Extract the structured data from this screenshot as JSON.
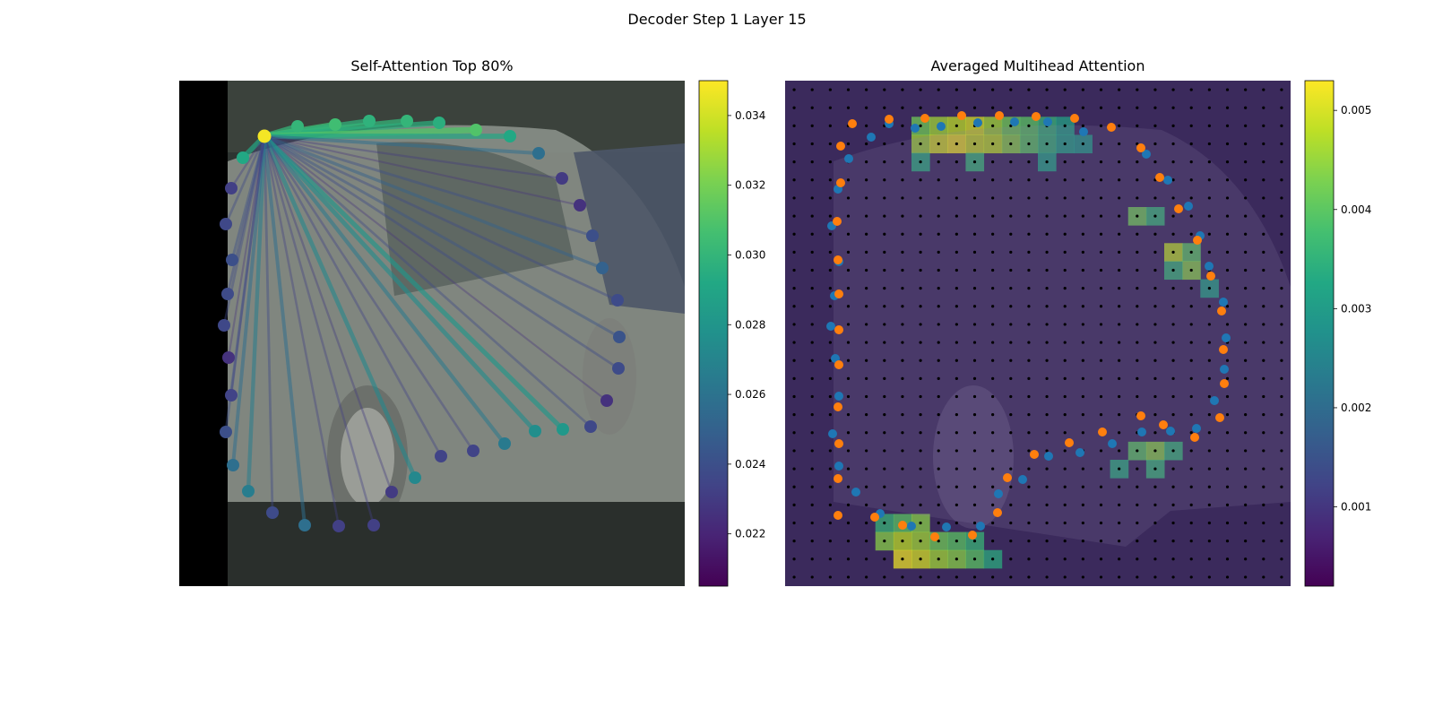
{
  "figure": {
    "suptitle": "Decoder Step 1 Layer 15"
  },
  "chart_data": [
    {
      "type": "scatter",
      "title": "Self-Attention Top 80%",
      "description_type": "image with attention lines between query points",
      "colorbar": {
        "colormap": "viridis",
        "range": [
          0.0205,
          0.035
        ],
        "ticks": [
          "0.022",
          "0.024",
          "0.026",
          "0.028",
          "0.030",
          "0.032",
          "0.034"
        ],
        "tick_values": [
          0.022,
          0.024,
          0.026,
          0.028,
          0.03,
          0.032,
          0.034
        ]
      },
      "query_point": {
        "x": 95,
        "y": 62,
        "value": 0.0348
      },
      "points": [
        {
          "x": 71,
          "y": 86,
          "value": 0.0292
        },
        {
          "x": 132,
          "y": 51,
          "value": 0.03
        },
        {
          "x": 174,
          "y": 49,
          "value": 0.0305
        },
        {
          "x": 212,
          "y": 45,
          "value": 0.0298
        },
        {
          "x": 254,
          "y": 45,
          "value": 0.03
        },
        {
          "x": 290,
          "y": 47,
          "value": 0.0296
        },
        {
          "x": 331,
          "y": 55,
          "value": 0.031
        },
        {
          "x": 369,
          "y": 62,
          "value": 0.0292
        },
        {
          "x": 401,
          "y": 81,
          "value": 0.0258
        },
        {
          "x": 427,
          "y": 109,
          "value": 0.023
        },
        {
          "x": 447,
          "y": 139,
          "value": 0.0226
        },
        {
          "x": 461,
          "y": 173,
          "value": 0.024
        },
        {
          "x": 472,
          "y": 209,
          "value": 0.025
        },
        {
          "x": 489,
          "y": 245,
          "value": 0.0238
        },
        {
          "x": 491,
          "y": 286,
          "value": 0.0242
        },
        {
          "x": 490,
          "y": 321,
          "value": 0.0238
        },
        {
          "x": 477,
          "y": 357,
          "value": 0.0226
        },
        {
          "x": 459,
          "y": 386,
          "value": 0.0236
        },
        {
          "x": 428,
          "y": 389,
          "value": 0.0282
        },
        {
          "x": 397,
          "y": 391,
          "value": 0.0276
        },
        {
          "x": 363,
          "y": 405,
          "value": 0.0264
        },
        {
          "x": 328,
          "y": 413,
          "value": 0.0234
        },
        {
          "x": 292,
          "y": 419,
          "value": 0.0234
        },
        {
          "x": 263,
          "y": 443,
          "value": 0.0272
        },
        {
          "x": 237,
          "y": 459,
          "value": 0.023
        },
        {
          "x": 217,
          "y": 496,
          "value": 0.0232
        },
        {
          "x": 178,
          "y": 497,
          "value": 0.0232
        },
        {
          "x": 140,
          "y": 496,
          "value": 0.0258
        },
        {
          "x": 104,
          "y": 482,
          "value": 0.0238
        },
        {
          "x": 77,
          "y": 458,
          "value": 0.0266
        },
        {
          "x": 60,
          "y": 429,
          "value": 0.0258
        },
        {
          "x": 52,
          "y": 392,
          "value": 0.024
        },
        {
          "x": 58,
          "y": 351,
          "value": 0.0234
        },
        {
          "x": 55,
          "y": 309,
          "value": 0.0226
        },
        {
          "x": 50,
          "y": 273,
          "value": 0.0236
        },
        {
          "x": 54,
          "y": 238,
          "value": 0.0238
        },
        {
          "x": 59,
          "y": 200,
          "value": 0.024
        },
        {
          "x": 52,
          "y": 160,
          "value": 0.0236
        },
        {
          "x": 58,
          "y": 120,
          "value": 0.0232
        }
      ]
    },
    {
      "type": "heatmap",
      "title": "Averaged Multihead Attention",
      "colorbar": {
        "colormap": "viridis",
        "range": [
          0.0002,
          0.0053
        ],
        "ticks": [
          "0.001",
          "0.002",
          "0.003",
          "0.004",
          "0.005"
        ],
        "tick_values": [
          0.001,
          0.002,
          0.003,
          0.004,
          0.005
        ]
      },
      "grid": {
        "rows": 28,
        "cols": 28
      },
      "hot_cells": [
        {
          "r": 2,
          "c": 7,
          "v": 0.0042
        },
        {
          "r": 2,
          "c": 8,
          "v": 0.0046
        },
        {
          "r": 2,
          "c": 9,
          "v": 0.0048
        },
        {
          "r": 2,
          "c": 10,
          "v": 0.005
        },
        {
          "r": 2,
          "c": 11,
          "v": 0.0046
        },
        {
          "r": 2,
          "c": 12,
          "v": 0.0042
        },
        {
          "r": 2,
          "c": 13,
          "v": 0.004
        },
        {
          "r": 2,
          "c": 14,
          "v": 0.0036
        },
        {
          "r": 2,
          "c": 15,
          "v": 0.0032
        },
        {
          "r": 3,
          "c": 7,
          "v": 0.0046
        },
        {
          "r": 3,
          "c": 8,
          "v": 0.005
        },
        {
          "r": 3,
          "c": 9,
          "v": 0.0052
        },
        {
          "r": 3,
          "c": 10,
          "v": 0.0049
        },
        {
          "r": 3,
          "c": 11,
          "v": 0.0048
        },
        {
          "r": 3,
          "c": 12,
          "v": 0.0044
        },
        {
          "r": 3,
          "c": 13,
          "v": 0.004
        },
        {
          "r": 3,
          "c": 14,
          "v": 0.0036
        },
        {
          "r": 3,
          "c": 15,
          "v": 0.0032
        },
        {
          "r": 3,
          "c": 16,
          "v": 0.003
        },
        {
          "r": 4,
          "c": 7,
          "v": 0.0034
        },
        {
          "r": 4,
          "c": 10,
          "v": 0.0036
        },
        {
          "r": 4,
          "c": 14,
          "v": 0.0032
        },
        {
          "r": 7,
          "c": 19,
          "v": 0.0042
        },
        {
          "r": 7,
          "c": 20,
          "v": 0.0036
        },
        {
          "r": 9,
          "c": 21,
          "v": 0.0048
        },
        {
          "r": 9,
          "c": 22,
          "v": 0.004
        },
        {
          "r": 10,
          "c": 22,
          "v": 0.0044
        },
        {
          "r": 10,
          "c": 21,
          "v": 0.0036
        },
        {
          "r": 11,
          "c": 23,
          "v": 0.0032
        },
        {
          "r": 20,
          "c": 19,
          "v": 0.004
        },
        {
          "r": 20,
          "c": 20,
          "v": 0.0044
        },
        {
          "r": 20,
          "c": 21,
          "v": 0.0036
        },
        {
          "r": 21,
          "c": 18,
          "v": 0.0034
        },
        {
          "r": 21,
          "c": 20,
          "v": 0.0036
        },
        {
          "r": 24,
          "c": 5,
          "v": 0.0036
        },
        {
          "r": 24,
          "c": 6,
          "v": 0.004
        },
        {
          "r": 24,
          "c": 7,
          "v": 0.0044
        },
        {
          "r": 25,
          "c": 5,
          "v": 0.0044
        },
        {
          "r": 25,
          "c": 6,
          "v": 0.0048
        },
        {
          "r": 25,
          "c": 7,
          "v": 0.0046
        },
        {
          "r": 25,
          "c": 8,
          "v": 0.0042
        },
        {
          "r": 25,
          "c": 9,
          "v": 0.004
        },
        {
          "r": 25,
          "c": 10,
          "v": 0.0036
        },
        {
          "r": 26,
          "c": 6,
          "v": 0.0052
        },
        {
          "r": 26,
          "c": 7,
          "v": 0.005
        },
        {
          "r": 26,
          "c": 8,
          "v": 0.0046
        },
        {
          "r": 26,
          "c": 9,
          "v": 0.0044
        },
        {
          "r": 26,
          "c": 10,
          "v": 0.004
        },
        {
          "r": 26,
          "c": 11,
          "v": 0.0034
        }
      ],
      "series": [
        {
          "color": "#1f77b4",
          "points": [
            {
              "x": 96,
              "y": 63
            },
            {
              "x": 116,
              "y": 48
            },
            {
              "x": 145,
              "y": 53
            },
            {
              "x": 174,
              "y": 51
            },
            {
              "x": 215,
              "y": 47
            },
            {
              "x": 256,
              "y": 46
            },
            {
              "x": 293,
              "y": 46
            },
            {
              "x": 333,
              "y": 57
            },
            {
              "x": 403,
              "y": 82
            },
            {
              "x": 427,
              "y": 111
            },
            {
              "x": 450,
              "y": 140
            },
            {
              "x": 463,
              "y": 173
            },
            {
              "x": 473,
              "y": 207
            },
            {
              "x": 489,
              "y": 247
            },
            {
              "x": 492,
              "y": 287
            },
            {
              "x": 490,
              "y": 322
            },
            {
              "x": 479,
              "y": 357
            },
            {
              "x": 459,
              "y": 388
            },
            {
              "x": 430,
              "y": 391
            },
            {
              "x": 398,
              "y": 392
            },
            {
              "x": 365,
              "y": 405
            },
            {
              "x": 329,
              "y": 415
            },
            {
              "x": 294,
              "y": 419
            },
            {
              "x": 265,
              "y": 445
            },
            {
              "x": 238,
              "y": 461
            },
            {
              "x": 218,
              "y": 497
            },
            {
              "x": 180,
              "y": 498
            },
            {
              "x": 141,
              "y": 497
            },
            {
              "x": 106,
              "y": 483
            },
            {
              "x": 79,
              "y": 459
            },
            {
              "x": 60,
              "y": 430
            },
            {
              "x": 53,
              "y": 394
            },
            {
              "x": 60,
              "y": 352
            },
            {
              "x": 56,
              "y": 310
            },
            {
              "x": 51,
              "y": 274
            },
            {
              "x": 55,
              "y": 240
            },
            {
              "x": 60,
              "y": 202
            },
            {
              "x": 52,
              "y": 162
            },
            {
              "x": 59,
              "y": 121
            },
            {
              "x": 71,
              "y": 87
            }
          ]
        },
        {
          "color": "#ff7f0e",
          "points": [
            {
              "x": 75,
              "y": 48
            },
            {
              "x": 62,
              "y": 73
            },
            {
              "x": 62,
              "y": 114
            },
            {
              "x": 58,
              "y": 157
            },
            {
              "x": 59,
              "y": 200
            },
            {
              "x": 60,
              "y": 238
            },
            {
              "x": 60,
              "y": 278
            },
            {
              "x": 60,
              "y": 317
            },
            {
              "x": 59,
              "y": 364
            },
            {
              "x": 60,
              "y": 405
            },
            {
              "x": 59,
              "y": 444
            },
            {
              "x": 59,
              "y": 485
            },
            {
              "x": 100,
              "y": 487
            },
            {
              "x": 131,
              "y": 496
            },
            {
              "x": 167,
              "y": 509
            },
            {
              "x": 209,
              "y": 507
            },
            {
              "x": 237,
              "y": 482
            },
            {
              "x": 248,
              "y": 443
            },
            {
              "x": 278,
              "y": 417
            },
            {
              "x": 317,
              "y": 404
            },
            {
              "x": 354,
              "y": 392
            },
            {
              "x": 397,
              "y": 374
            },
            {
              "x": 422,
              "y": 384
            },
            {
              "x": 457,
              "y": 398
            },
            {
              "x": 485,
              "y": 376
            },
            {
              "x": 490,
              "y": 338
            },
            {
              "x": 489,
              "y": 300
            },
            {
              "x": 487,
              "y": 257
            },
            {
              "x": 475,
              "y": 218
            },
            {
              "x": 460,
              "y": 178
            },
            {
              "x": 439,
              "y": 143
            },
            {
              "x": 418,
              "y": 108
            },
            {
              "x": 397,
              "y": 75
            },
            {
              "x": 364,
              "y": 52
            },
            {
              "x": 323,
              "y": 42
            },
            {
              "x": 280,
              "y": 40
            },
            {
              "x": 239,
              "y": 39
            },
            {
              "x": 197,
              "y": 39
            },
            {
              "x": 156,
              "y": 42
            },
            {
              "x": 116,
              "y": 43
            }
          ]
        }
      ]
    }
  ]
}
